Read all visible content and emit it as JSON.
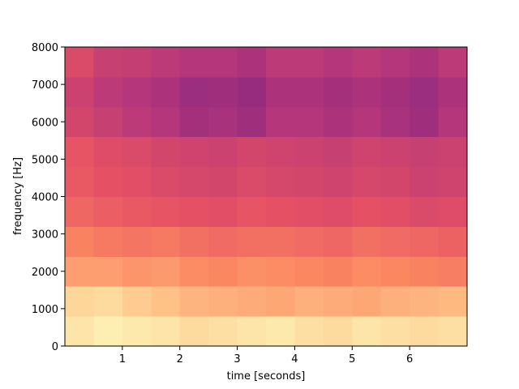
{
  "chart_data": {
    "type": "heatmap",
    "xlabel": "time [seconds]",
    "ylabel": "frequency [Hz]",
    "xlim": [
      0,
      7
    ],
    "ylim": [
      0,
      8000
    ],
    "xticks": [
      1,
      2,
      3,
      4,
      5,
      6
    ],
    "yticks": [
      0,
      1000,
      2000,
      3000,
      4000,
      5000,
      6000,
      7000,
      8000
    ],
    "colormap": "magma",
    "x_bins": [
      0,
      0.5,
      1,
      1.5,
      2,
      2.5,
      3,
      3.5,
      4,
      4.5,
      5,
      5.5,
      6,
      6.5,
      7
    ],
    "y_bins": [
      0,
      800,
      1600,
      2400,
      3200,
      4000,
      4800,
      5600,
      6400,
      7200,
      8000
    ],
    "values": [
      [
        0.95,
        0.97,
        0.96,
        0.95,
        0.93,
        0.94,
        0.95,
        0.96,
        0.94,
        0.93,
        0.95,
        0.94,
        0.93,
        0.94
      ],
      [
        0.92,
        0.93,
        0.9,
        0.88,
        0.85,
        0.84,
        0.83,
        0.82,
        0.84,
        0.83,
        0.82,
        0.84,
        0.85,
        0.86
      ],
      [
        0.8,
        0.8,
        0.78,
        0.79,
        0.76,
        0.75,
        0.77,
        0.76,
        0.75,
        0.74,
        0.76,
        0.75,
        0.74,
        0.73
      ],
      [
        0.74,
        0.72,
        0.71,
        0.72,
        0.7,
        0.69,
        0.7,
        0.7,
        0.69,
        0.68,
        0.7,
        0.69,
        0.68,
        0.67
      ],
      [
        0.68,
        0.66,
        0.65,
        0.64,
        0.63,
        0.62,
        0.64,
        0.63,
        0.62,
        0.61,
        0.63,
        0.62,
        0.6,
        0.61
      ],
      [
        0.65,
        0.63,
        0.62,
        0.6,
        0.59,
        0.58,
        0.6,
        0.59,
        0.58,
        0.57,
        0.59,
        0.58,
        0.56,
        0.57
      ],
      [
        0.64,
        0.61,
        0.6,
        0.58,
        0.57,
        0.56,
        0.58,
        0.57,
        0.56,
        0.55,
        0.57,
        0.56,
        0.55,
        0.56
      ],
      [
        0.58,
        0.55,
        0.52,
        0.5,
        0.46,
        0.47,
        0.45,
        0.5,
        0.5,
        0.48,
        0.5,
        0.47,
        0.45,
        0.5
      ],
      [
        0.56,
        0.52,
        0.5,
        0.48,
        0.44,
        0.45,
        0.43,
        0.48,
        0.48,
        0.46,
        0.48,
        0.46,
        0.44,
        0.48
      ],
      [
        0.6,
        0.55,
        0.54,
        0.52,
        0.5,
        0.5,
        0.48,
        0.52,
        0.52,
        0.5,
        0.52,
        0.5,
        0.48,
        0.52
      ]
    ]
  }
}
